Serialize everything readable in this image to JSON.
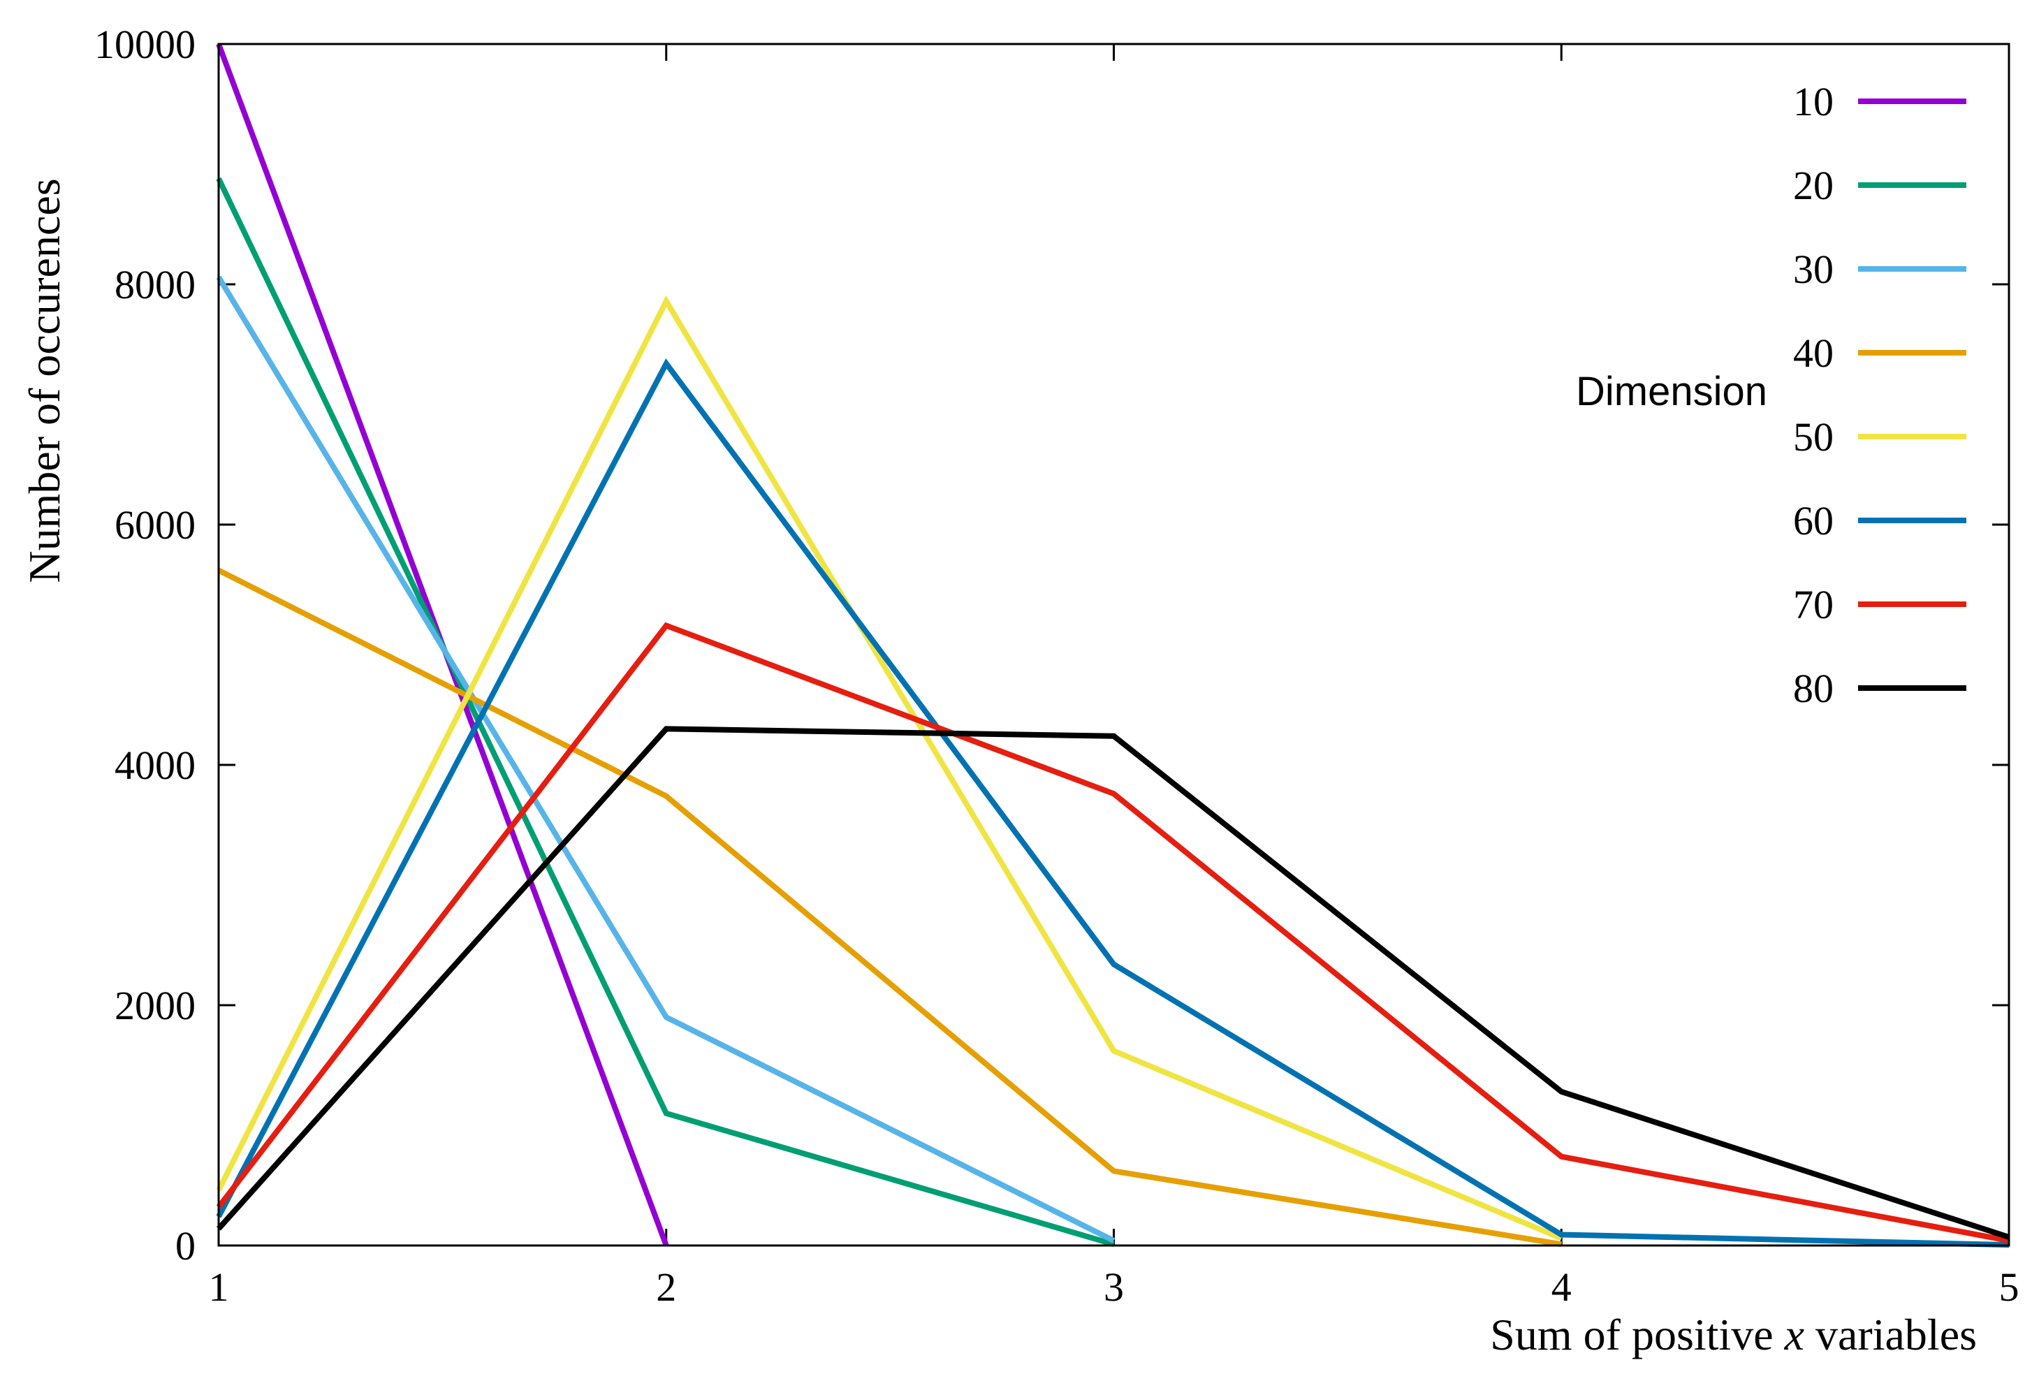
{
  "chart_data": {
    "type": "line",
    "title": "",
    "xlabel_prefix": "Sum of positive ",
    "xlabel_var": "x",
    "xlabel_suffix": " variables",
    "ylabel": "Number of occurences",
    "xlim": [
      1,
      5
    ],
    "ylim": [
      0,
      10000
    ],
    "x_ticks": [
      1,
      2,
      3,
      4,
      5
    ],
    "y_ticks": [
      0,
      2000,
      4000,
      6000,
      8000,
      10000
    ],
    "legend_title": "Dimension",
    "legend_position": "top-right",
    "grid": false,
    "series": [
      {
        "name": "10",
        "color": "#9400d3",
        "x": [
          1,
          2
        ],
        "values": [
          10000,
          0
        ]
      },
      {
        "name": "20",
        "color": "#009e73",
        "x": [
          1,
          2,
          3
        ],
        "values": [
          8880,
          1100,
          10
        ]
      },
      {
        "name": "30",
        "color": "#56b4e9",
        "x": [
          1,
          2,
          3
        ],
        "values": [
          8060,
          1900,
          40
        ]
      },
      {
        "name": "40",
        "color": "#e69f00",
        "x": [
          1,
          2,
          3,
          4
        ],
        "values": [
          5620,
          3740,
          620,
          10
        ]
      },
      {
        "name": "50",
        "color": "#f0e442",
        "x": [
          1,
          2,
          3,
          4
        ],
        "values": [
          460,
          7860,
          1620,
          60
        ]
      },
      {
        "name": "60",
        "color": "#0072b2",
        "x": [
          1,
          2,
          3,
          4,
          5
        ],
        "values": [
          240,
          7340,
          2340,
          90,
          5
        ]
      },
      {
        "name": "70",
        "color": "#e51e10",
        "x": [
          1,
          2,
          3,
          4,
          5
        ],
        "values": [
          320,
          5160,
          3760,
          740,
          40
        ]
      },
      {
        "name": "80",
        "color": "#000000",
        "x": [
          1,
          2,
          3,
          4,
          5
        ],
        "values": [
          140,
          4300,
          4240,
          1280,
          70
        ]
      }
    ]
  }
}
